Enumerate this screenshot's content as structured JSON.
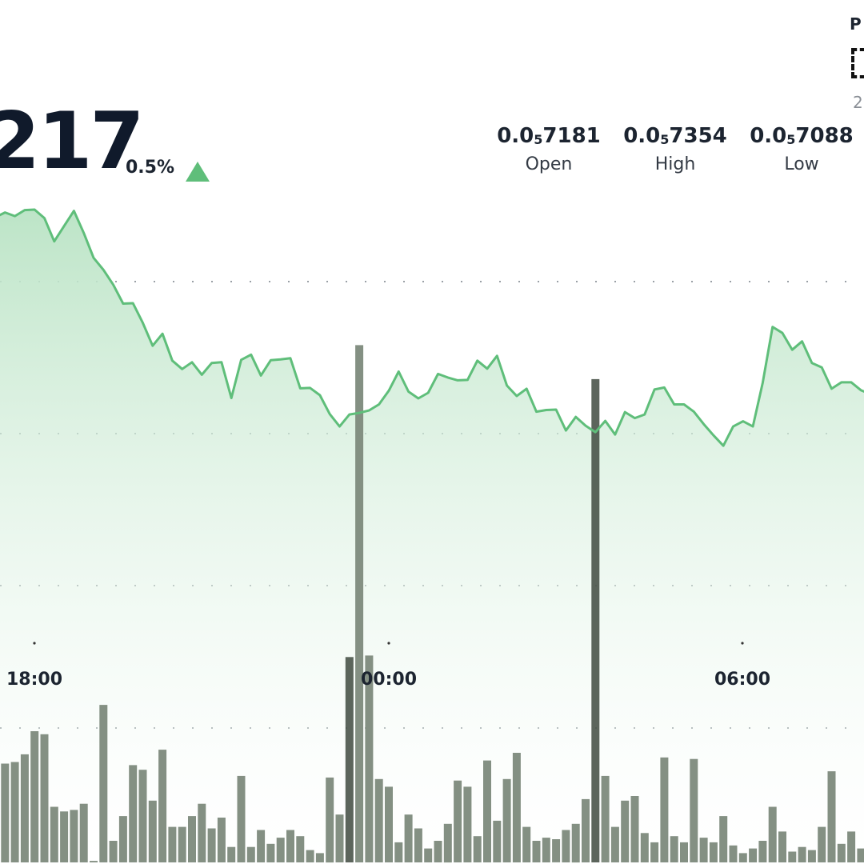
{
  "header": {
    "price": "217",
    "change": "0.5%",
    "trend_icon": "up-triangle-icon",
    "stats": [
      {
        "lead": "0.0",
        "sub": "5",
        "tail": "7181",
        "label": "Open"
      },
      {
        "lead": "0.0",
        "sub": "5",
        "tail": "7354",
        "label": "High"
      },
      {
        "lead": "0.0",
        "sub": "5",
        "tail": "7088",
        "label": "Low"
      }
    ],
    "corner": {
      "letter": "P",
      "digit": "2"
    }
  },
  "colors": {
    "line": "#5fbe7a",
    "area_top": "#b9e3c4",
    "volume": "#7d8a7c",
    "volume_highlight": "#3f4a40",
    "grid": "#9aa0a6"
  },
  "chart_data": {
    "type": "area",
    "x_ticks": [
      "18:00",
      "00:00",
      "06:00"
    ],
    "grid": true,
    "price_series": [
      0.957,
      0.969,
      0.96,
      0.975,
      0.976,
      0.955,
      0.897,
      0.935,
      0.973,
      0.918,
      0.856,
      0.826,
      0.789,
      0.742,
      0.743,
      0.694,
      0.637,
      0.667,
      0.6,
      0.579,
      0.596,
      0.565,
      0.594,
      0.596,
      0.507,
      0.602,
      0.615,
      0.563,
      0.601,
      0.603,
      0.606,
      0.531,
      0.532,
      0.514,
      0.467,
      0.436,
      0.466,
      0.47,
      0.476,
      0.491,
      0.525,
      0.573,
      0.523,
      0.506,
      0.52,
      0.567,
      0.558,
      0.551,
      0.552,
      0.6,
      0.58,
      0.612,
      0.538,
      0.512,
      0.53,
      0.473,
      0.477,
      0.478,
      0.426,
      0.46,
      0.438,
      0.422,
      0.45,
      0.416,
      0.472,
      0.457,
      0.466,
      0.528,
      0.533,
      0.491,
      0.491,
      0.473,
      0.442,
      0.414,
      0.388,
      0.436,
      0.449,
      0.436,
      0.545,
      0.684,
      0.669,
      0.627,
      0.648,
      0.594,
      0.583,
      0.53,
      0.546,
      0.546,
      0.526,
      0.516
    ],
    "volume_series": [
      0.72,
      0.64,
      0.65,
      0.7,
      0.85,
      0.83,
      0.36,
      0.33,
      0.34,
      0.38,
      0.01,
      1.02,
      0.14,
      0.3,
      0.63,
      0.6,
      0.4,
      0.73,
      0.23,
      0.23,
      0.3,
      0.38,
      0.22,
      0.29,
      0.1,
      0.56,
      0.1,
      0.21,
      0.12,
      0.16,
      0.21,
      0.17,
      0.08,
      0.06,
      0.55,
      0.31,
      1.33,
      3.35,
      1.34,
      0.54,
      0.49,
      0.13,
      0.31,
      0.22,
      0.09,
      0.14,
      0.25,
      0.53,
      0.49,
      0.17,
      0.66,
      0.27,
      0.54,
      0.71,
      0.23,
      0.14,
      0.16,
      0.15,
      0.21,
      0.25,
      0.41,
      3.13,
      0.56,
      0.23,
      0.4,
      0.43,
      0.19,
      0.13,
      0.68,
      0.17,
      0.13,
      0.67,
      0.16,
      0.13,
      0.3,
      0.11,
      0.06,
      0.09,
      0.14,
      0.36,
      0.2,
      0.07,
      0.1,
      0.08,
      0.23,
      0.59,
      0.12,
      0.2,
      0.09,
      0.13
    ],
    "highlight_volume_bars": [
      36,
      61
    ]
  }
}
